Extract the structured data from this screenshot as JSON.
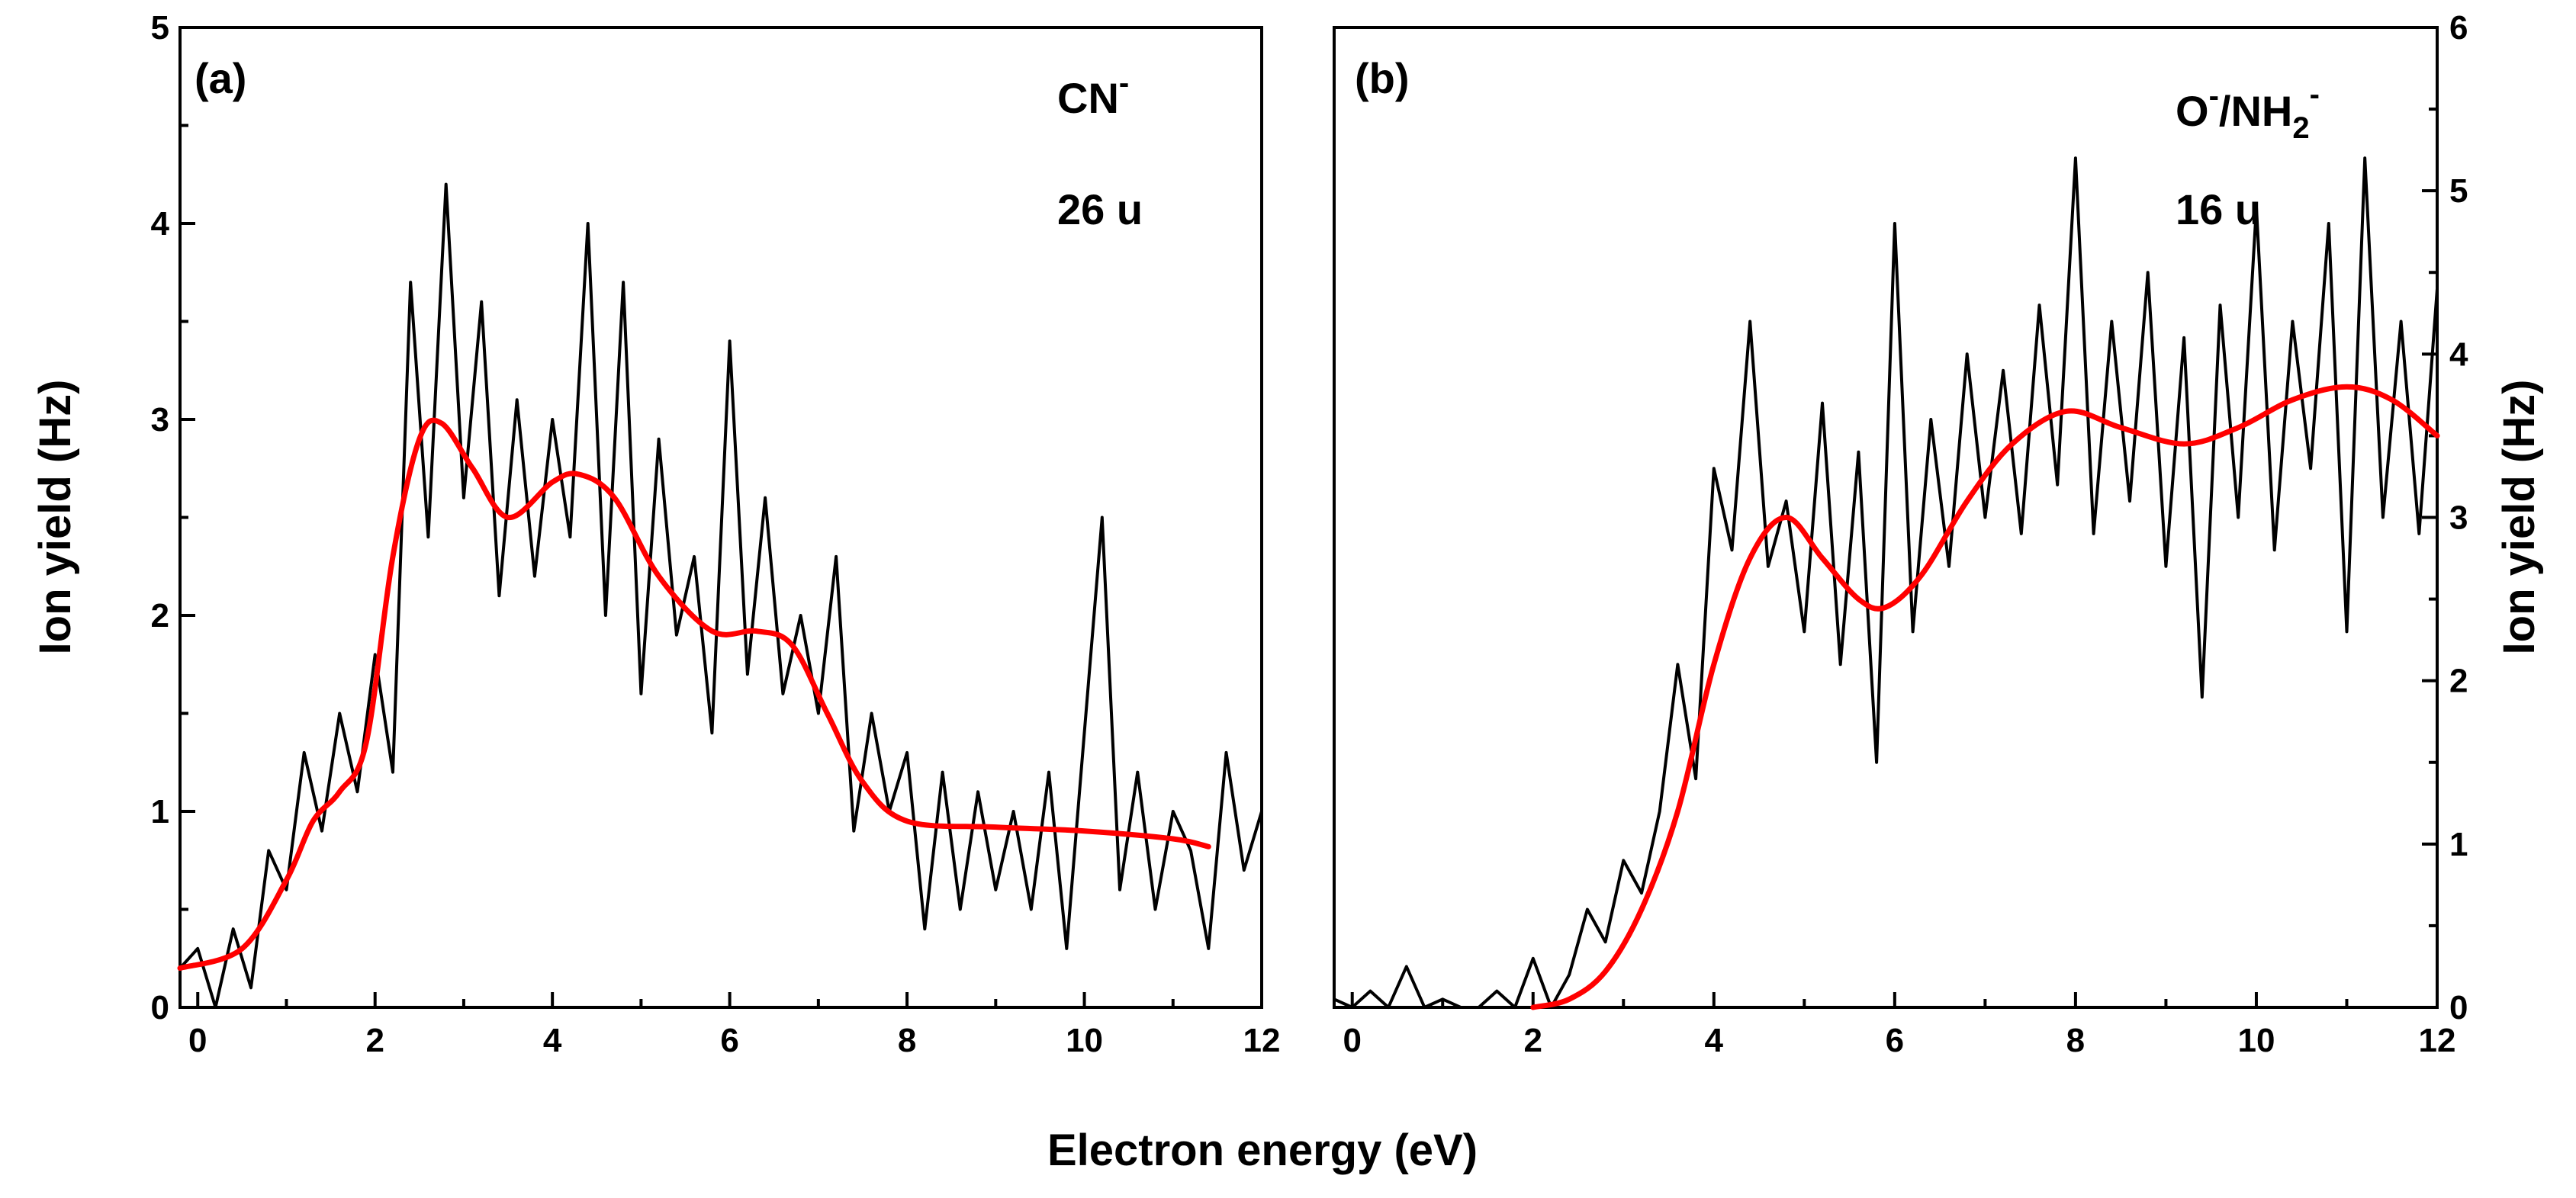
{
  "chart_data": [
    {
      "type": "line",
      "panel_label": "(a)",
      "annotation": {
        "species": "CN",
        "charge": "-",
        "mass": "26 u"
      },
      "xlabel": "Electron energy (eV)",
      "ylabel": "Ion yield (Hz)",
      "xlim": [
        -0.2,
        12
      ],
      "ylim": [
        0,
        5
      ],
      "x_ticks": [
        "0",
        "2",
        "4",
        "6",
        "8",
        "10",
        "12"
      ],
      "y_ticks": [
        "0",
        "1",
        "2",
        "3",
        "4",
        "5"
      ],
      "y_axis_side": "left",
      "series": [
        {
          "name": "measured",
          "color": "#000000",
          "x": [
            -0.2,
            0.0,
            0.2,
            0.4,
            0.6,
            0.8,
            1.0,
            1.2,
            1.4,
            1.6,
            1.8,
            2.0,
            2.2,
            2.4,
            2.6,
            2.8,
            3.0,
            3.2,
            3.4,
            3.6,
            3.8,
            4.0,
            4.2,
            4.4,
            4.6,
            4.8,
            5.0,
            5.2,
            5.4,
            5.6,
            5.8,
            6.0,
            6.2,
            6.4,
            6.6,
            6.8,
            7.0,
            7.2,
            7.4,
            7.6,
            7.8,
            8.0,
            8.2,
            8.4,
            8.6,
            8.8,
            9.0,
            9.2,
            9.4,
            9.6,
            9.8,
            10.0,
            10.2,
            10.4,
            10.6,
            10.8,
            11.0,
            11.2,
            11.4,
            11.6,
            11.8,
            12.0
          ],
          "y": [
            0.2,
            0.3,
            0.0,
            0.4,
            0.1,
            0.8,
            0.6,
            1.3,
            0.9,
            1.5,
            1.1,
            1.8,
            1.2,
            3.7,
            2.4,
            4.2,
            2.6,
            3.6,
            2.1,
            3.1,
            2.2,
            3.0,
            2.4,
            4.0,
            2.0,
            3.7,
            1.6,
            2.9,
            1.9,
            2.3,
            1.4,
            3.4,
            1.7,
            2.6,
            1.6,
            2.0,
            1.5,
            2.3,
            0.9,
            1.5,
            1.0,
            1.3,
            0.4,
            1.2,
            0.5,
            1.1,
            0.6,
            1.0,
            0.5,
            1.2,
            0.3,
            1.4,
            2.5,
            0.6,
            1.2,
            0.5,
            1.0,
            0.8,
            0.3,
            1.3,
            0.7,
            1.0
          ]
        },
        {
          "name": "fit",
          "color": "#ff0000",
          "x": [
            -0.2,
            0.5,
            1.0,
            1.3,
            1.6,
            1.9,
            2.2,
            2.5,
            2.75,
            3.1,
            3.5,
            4.0,
            4.3,
            4.7,
            5.2,
            5.8,
            6.3,
            6.7,
            7.1,
            7.5,
            8.0,
            9.0,
            10.0,
            11.0,
            11.4
          ],
          "y": [
            0.2,
            0.3,
            0.65,
            0.95,
            1.1,
            1.35,
            2.3,
            2.9,
            2.98,
            2.75,
            2.5,
            2.68,
            2.72,
            2.6,
            2.2,
            1.92,
            1.92,
            1.85,
            1.5,
            1.15,
            0.95,
            0.92,
            0.9,
            0.86,
            0.82
          ]
        }
      ]
    },
    {
      "type": "line",
      "panel_label": "(b)",
      "annotation": {
        "species1": "O",
        "species2": "NH",
        "sub": "2",
        "charge": "-",
        "mass": "16 u"
      },
      "xlabel": "Electron energy (eV)",
      "ylabel": "Ion yield (Hz)",
      "xlim": [
        -0.2,
        12
      ],
      "ylim": [
        0,
        6
      ],
      "x_ticks": [
        "0",
        "2",
        "4",
        "6",
        "8",
        "10",
        "12"
      ],
      "y_ticks": [
        "0",
        "1",
        "2",
        "3",
        "4",
        "5",
        "6"
      ],
      "y_axis_side": "right",
      "series": [
        {
          "name": "measured",
          "color": "#000000",
          "x": [
            -0.2,
            0.0,
            0.2,
            0.4,
            0.6,
            0.8,
            1.0,
            1.2,
            1.4,
            1.6,
            1.8,
            2.0,
            2.2,
            2.4,
            2.6,
            2.8,
            3.0,
            3.2,
            3.4,
            3.6,
            3.8,
            4.0,
            4.2,
            4.4,
            4.6,
            4.8,
            5.0,
            5.2,
            5.4,
            5.6,
            5.8,
            6.0,
            6.2,
            6.4,
            6.6,
            6.8,
            7.0,
            7.2,
            7.4,
            7.6,
            7.8,
            8.0,
            8.2,
            8.4,
            8.6,
            8.8,
            9.0,
            9.2,
            9.4,
            9.6,
            9.8,
            10.0,
            10.2,
            10.4,
            10.6,
            10.8,
            11.0,
            11.2,
            11.4,
            11.6,
            11.8,
            12.0
          ],
          "y": [
            0.05,
            0.0,
            0.1,
            0.0,
            0.25,
            0.0,
            0.05,
            0.0,
            0.0,
            0.1,
            0.0,
            0.3,
            0.0,
            0.2,
            0.6,
            0.4,
            0.9,
            0.7,
            1.2,
            2.1,
            1.4,
            3.3,
            2.8,
            4.2,
            2.7,
            3.1,
            2.3,
            3.7,
            2.1,
            3.4,
            1.5,
            4.8,
            2.3,
            3.6,
            2.7,
            4.0,
            3.0,
            3.9,
            2.9,
            4.3,
            3.2,
            5.2,
            2.9,
            4.2,
            3.1,
            4.5,
            2.7,
            4.1,
            1.9,
            4.3,
            3.0,
            4.9,
            2.8,
            4.2,
            3.3,
            4.8,
            2.3,
            5.2,
            3.0,
            4.2,
            2.9,
            4.4
          ]
        },
        {
          "name": "fit",
          "color": "#ff0000",
          "x": [
            2.0,
            2.4,
            2.8,
            3.2,
            3.6,
            4.0,
            4.4,
            4.8,
            5.2,
            5.6,
            5.9,
            6.3,
            6.8,
            7.3,
            7.9,
            8.5,
            9.2,
            9.8,
            10.4,
            11.0,
            11.5,
            12.0
          ],
          "y": [
            0.0,
            0.05,
            0.22,
            0.6,
            1.2,
            2.1,
            2.75,
            3.0,
            2.75,
            2.5,
            2.45,
            2.65,
            3.1,
            3.45,
            3.65,
            3.55,
            3.45,
            3.55,
            3.72,
            3.8,
            3.72,
            3.5
          ]
        }
      ]
    }
  ]
}
